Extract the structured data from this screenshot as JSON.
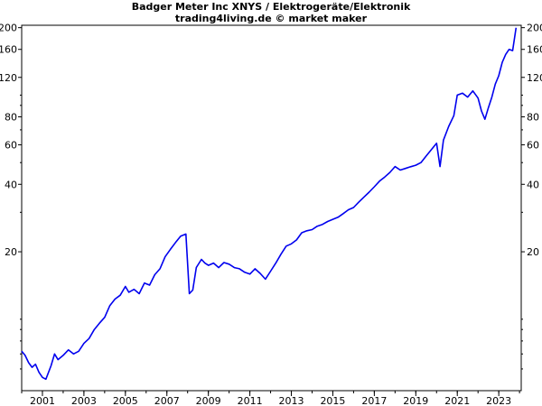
{
  "chart_data": {
    "type": "line",
    "title": "Badger Meter Inc XNYS / Elektrogeräte/Elektronik",
    "subtitle": "trading4living.de © market maker",
    "xlabel": "",
    "ylabel": "",
    "y_scale": "log",
    "ylim": [
      4.8,
      205
    ],
    "xlim": [
      "2000-01-01",
      "2024-01-31"
    ],
    "grid": false,
    "legend": "none",
    "x_ticks": [
      "2001",
      "2003",
      "2005",
      "2007",
      "2009",
      "2011",
      "2013",
      "2015",
      "2017",
      "2019",
      "2021",
      "2023"
    ],
    "y_ticks": [
      "200",
      "160",
      "120",
      "80",
      "60",
      "40",
      "20"
    ],
    "series": [
      {
        "color": "#0000ee",
        "x": [
          "2000-01",
          "2000-03",
          "2000-05",
          "2000-07",
          "2000-09",
          "2000-11",
          "2001-01",
          "2001-03",
          "2001-06",
          "2001-08",
          "2001-10",
          "2002-01",
          "2002-04",
          "2002-07",
          "2002-10",
          "2003-01",
          "2003-04",
          "2003-07",
          "2003-10",
          "2004-01",
          "2004-04",
          "2004-07",
          "2004-10",
          "2005-01",
          "2005-03",
          "2005-06",
          "2005-09",
          "2005-12",
          "2006-03",
          "2006-06",
          "2006-09",
          "2006-12",
          "2007-03",
          "2007-06",
          "2007-09",
          "2007-12",
          "2008-02",
          "2008-04",
          "2008-06",
          "2008-07",
          "2008-09",
          "2008-11",
          "2009-01",
          "2009-04",
          "2009-07",
          "2009-10",
          "2010-01",
          "2010-04",
          "2010-07",
          "2010-10",
          "2011-01",
          "2011-04",
          "2011-07",
          "2011-10",
          "2012-01",
          "2012-04",
          "2012-07",
          "2012-10",
          "2013-01",
          "2013-04",
          "2013-07",
          "2013-10",
          "2014-01",
          "2014-04",
          "2014-07",
          "2014-10",
          "2015-01",
          "2015-04",
          "2015-07",
          "2015-10",
          "2016-01",
          "2016-04",
          "2016-07",
          "2016-10",
          "2017-01",
          "2017-04",
          "2017-07",
          "2017-10",
          "2018-01",
          "2018-04",
          "2018-07",
          "2018-10",
          "2019-01",
          "2019-04",
          "2019-07",
          "2019-10",
          "2020-01",
          "2020-03",
          "2020-05",
          "2020-08",
          "2020-11",
          "2021-01",
          "2021-04",
          "2021-07",
          "2021-10",
          "2022-01",
          "2022-03",
          "2022-05",
          "2022-07",
          "2022-09",
          "2022-11",
          "2023-01",
          "2023-03",
          "2023-05",
          "2023-07",
          "2023-09",
          "2023-11"
        ],
        "values": [
          7.2,
          6.9,
          6.4,
          6.1,
          6.3,
          5.8,
          5.5,
          5.4,
          6.2,
          7.0,
          6.6,
          6.9,
          7.3,
          7.0,
          7.2,
          7.8,
          8.2,
          9.0,
          9.6,
          10.2,
          11.5,
          12.3,
          12.8,
          14.0,
          13.2,
          13.6,
          13.0,
          14.5,
          14.2,
          15.8,
          16.8,
          19.0,
          20.5,
          22.0,
          23.5,
          24.0,
          13.0,
          13.5,
          17.0,
          17.5,
          18.5,
          17.8,
          17.4,
          17.8,
          17.0,
          17.9,
          17.6,
          17.0,
          16.8,
          16.2,
          15.9,
          16.8,
          16.0,
          15.1,
          16.4,
          17.8,
          19.5,
          21.2,
          21.7,
          22.6,
          24.3,
          24.8,
          25.1,
          26.0,
          26.5,
          27.3,
          27.9,
          28.5,
          29.6,
          30.8,
          31.5,
          33.3,
          35.1,
          36.9,
          39.0,
          41.3,
          43.1,
          45.2,
          48.0,
          46.3,
          47.1,
          47.9,
          48.7,
          50.0,
          53.5,
          57.1,
          61.0,
          48.0,
          63.0,
          72.5,
          81.0,
          100.0,
          102.0,
          98.0,
          104.5,
          97.0,
          85.0,
          78.0,
          88.0,
          98.0,
          112.0,
          122.0,
          140.0,
          152.0,
          160.0,
          158.0,
          200.0
        ]
      }
    ]
  }
}
